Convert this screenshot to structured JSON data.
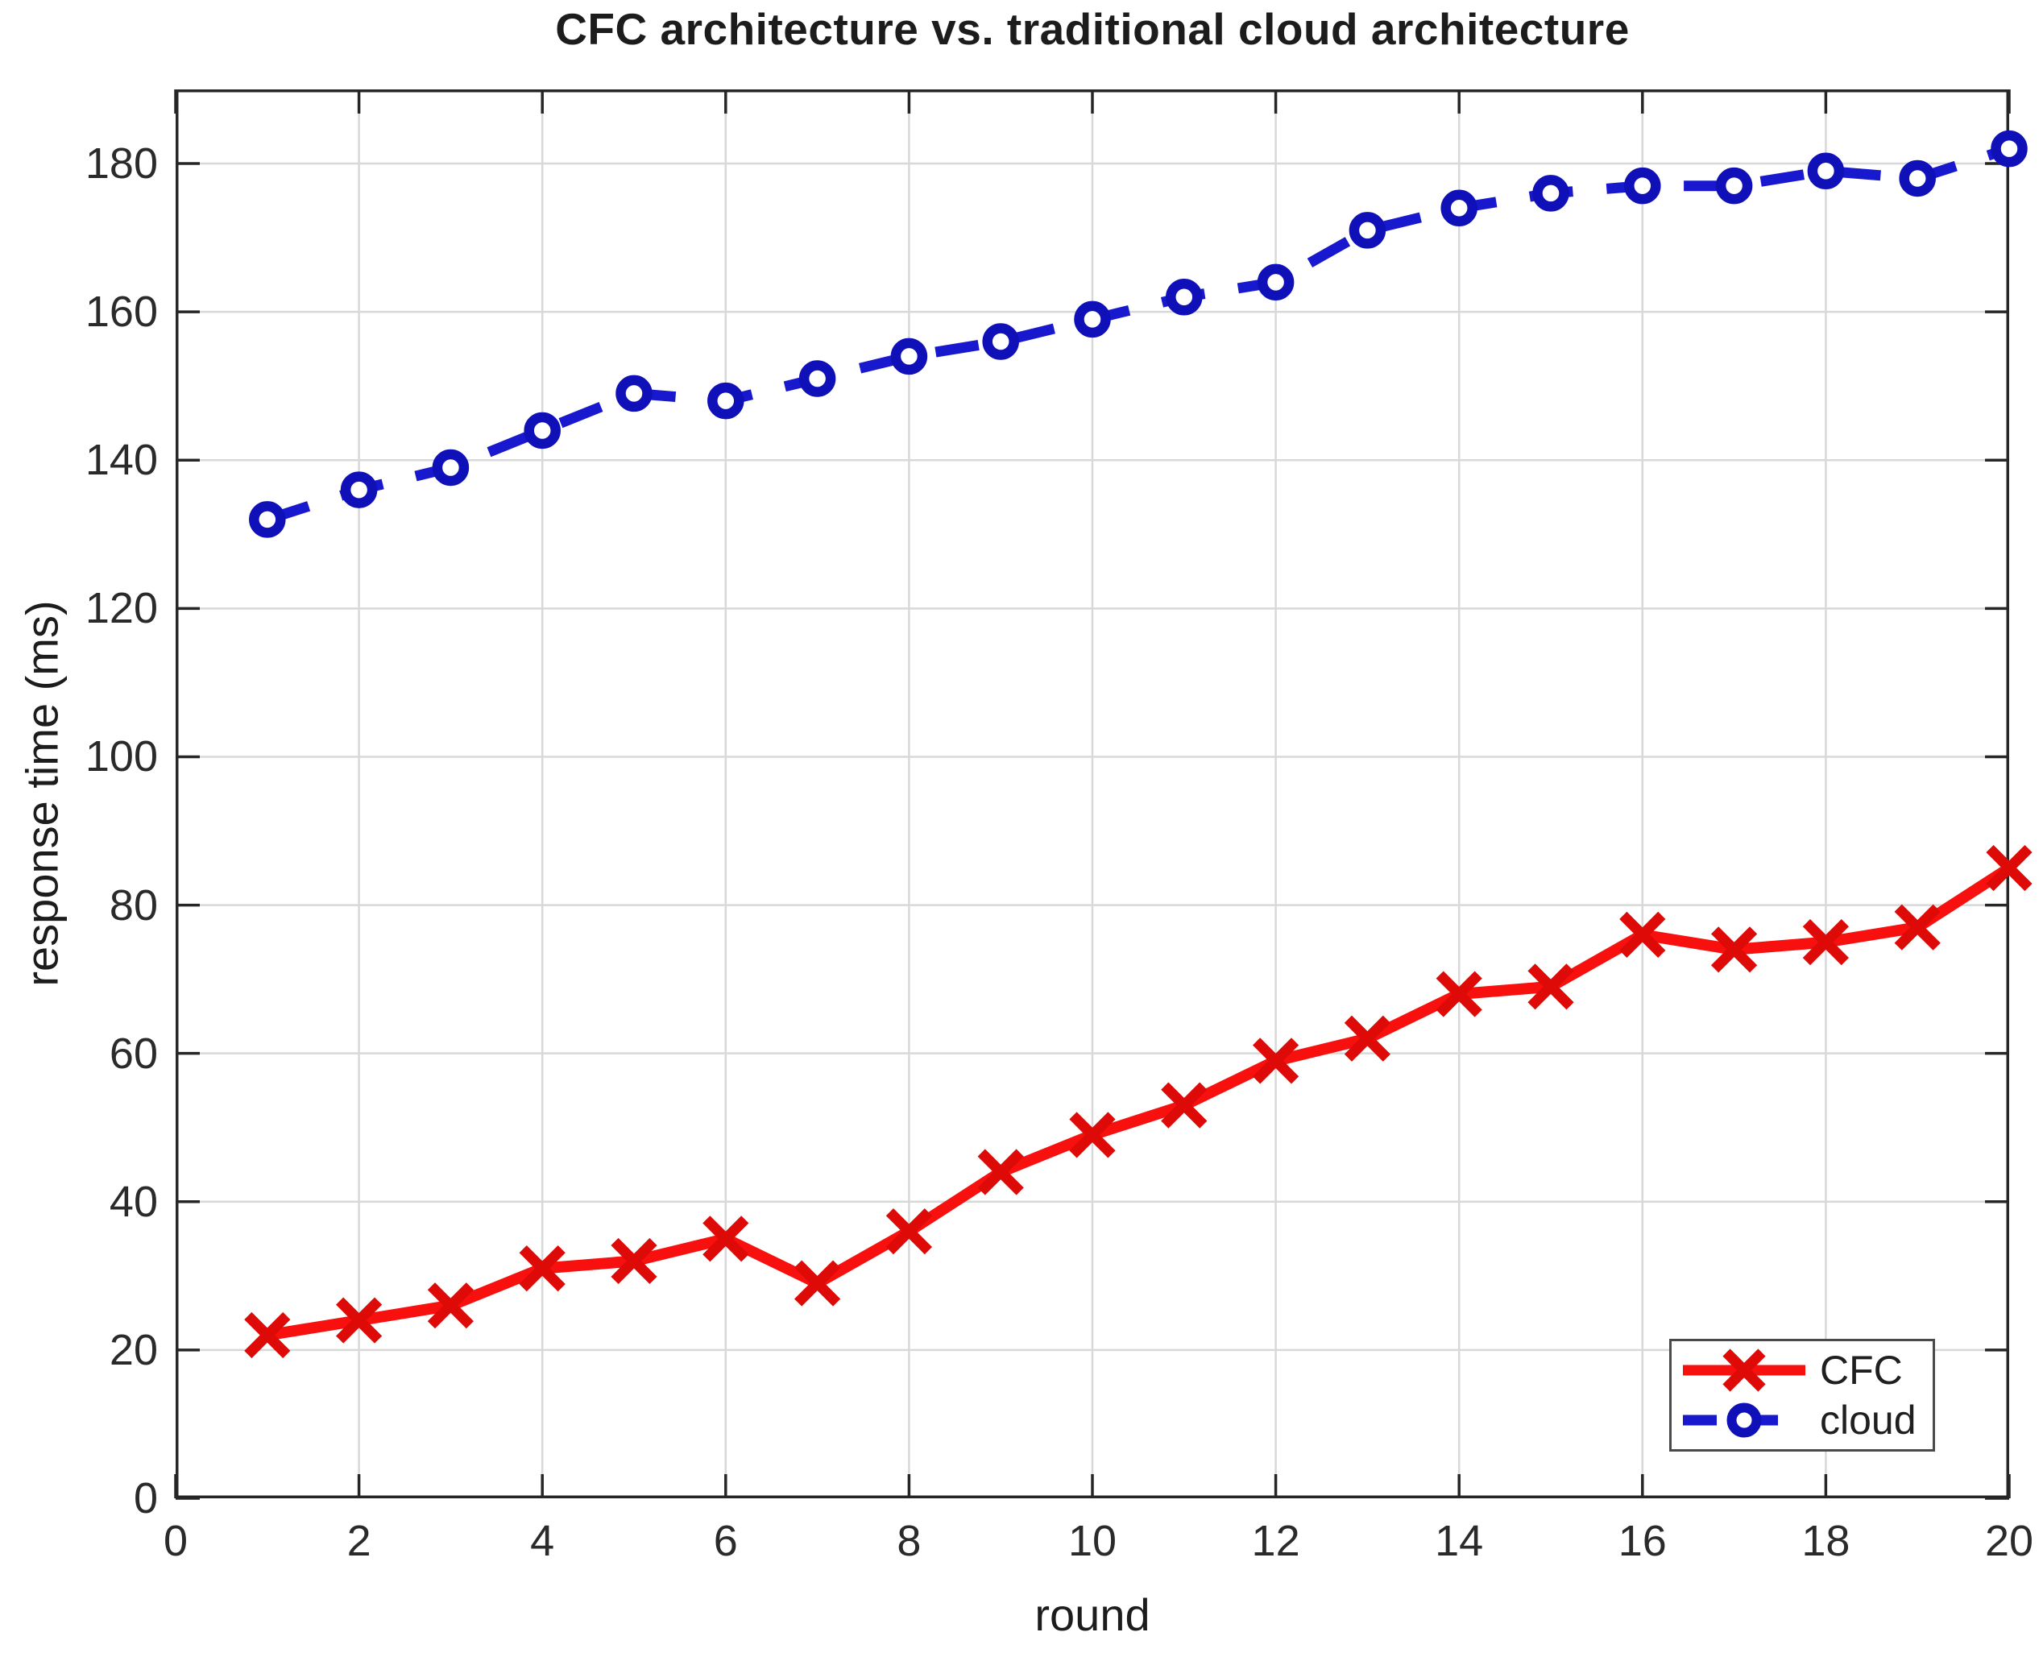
{
  "chart_data": {
    "type": "line",
    "title": "CFC architecture vs. traditional cloud architecture",
    "xlabel": "round",
    "ylabel": "response time (ms)",
    "x": [
      1,
      2,
      3,
      4,
      5,
      6,
      7,
      8,
      9,
      10,
      11,
      12,
      13,
      14,
      15,
      16,
      17,
      18,
      19,
      20
    ],
    "series": [
      {
        "name": "CFC",
        "color": "#f7100e",
        "marker_color": "#dd0a08",
        "line_style": "solid",
        "marker": "x",
        "values": [
          22,
          24,
          26,
          31,
          32,
          35,
          29,
          36,
          44,
          49,
          53,
          59,
          62,
          68,
          69,
          76,
          74,
          75,
          77,
          85
        ]
      },
      {
        "name": "cloud",
        "color": "#1818cf",
        "marker_color": "#1010b8",
        "line_style": "dashed",
        "marker": "circle",
        "values": [
          132,
          136,
          139,
          144,
          149,
          148,
          151,
          154,
          156,
          159,
          162,
          164,
          171,
          174,
          176,
          177,
          177,
          179,
          178,
          182
        ]
      }
    ],
    "xlim": [
      0,
      20
    ],
    "ylim": [
      0,
      190
    ],
    "xticks": [
      0,
      2,
      4,
      6,
      8,
      10,
      12,
      14,
      16,
      18,
      20
    ],
    "yticks": [
      0,
      20,
      40,
      60,
      80,
      100,
      120,
      140,
      160,
      180
    ],
    "grid": true,
    "legend_position": "bottom-right"
  }
}
